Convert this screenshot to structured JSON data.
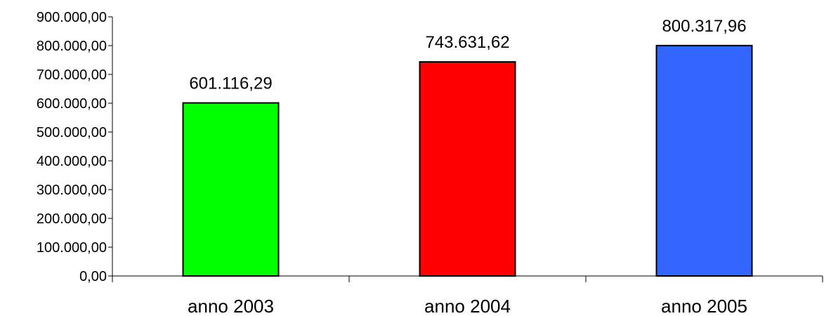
{
  "chart_data": {
    "type": "bar",
    "title": "",
    "xlabel": "",
    "ylabel": "",
    "categories": [
      "anno 2003",
      "anno 2004",
      "anno 2005"
    ],
    "values": [
      601116.29,
      743631.62,
      800317.96
    ],
    "data_labels": [
      "601.116,29",
      "743.631,62",
      "800.317,96"
    ],
    "bar_colors": [
      "#00FF00",
      "#FF0000",
      "#3366FF"
    ],
    "ylim": [
      0,
      900000
    ],
    "y_ticks": [
      0,
      100000,
      200000,
      300000,
      400000,
      500000,
      600000,
      700000,
      800000,
      900000
    ],
    "y_tick_labels": [
      "0,00",
      "100.000,00",
      "200.000,00",
      "300.000,00",
      "400.000,00",
      "500.000,00",
      "600.000,00",
      "700.000,00",
      "800.000,00",
      "900.000,00"
    ],
    "grid": false,
    "legend": "none"
  }
}
